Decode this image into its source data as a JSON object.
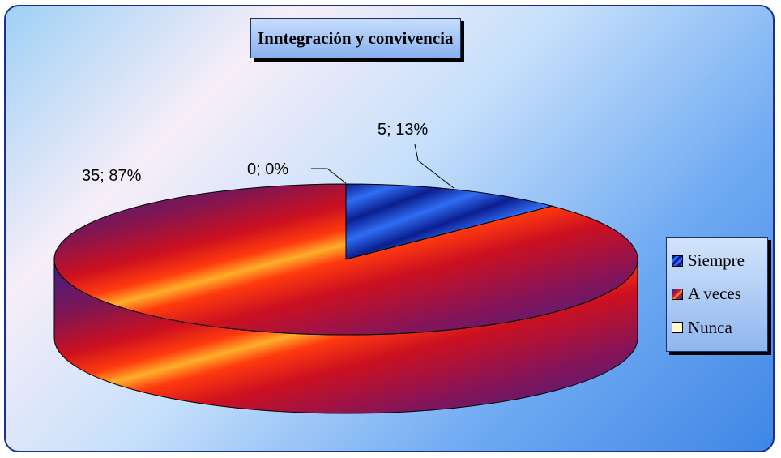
{
  "chart_data": {
    "type": "pie",
    "title": "Inntegración y convivencia",
    "categories": [
      "Siempre",
      "A veces",
      "Nunca"
    ],
    "values": [
      5,
      35,
      0
    ],
    "data_labels": [
      "5; 13%",
      "35; 87%",
      "0; 0%"
    ],
    "legend": {
      "placement": "right",
      "items": [
        {
          "label": "Siempre",
          "color": "#1b3fbf"
        },
        {
          "label": "A veces",
          "color": "#d01e2e"
        },
        {
          "label": "Nunca",
          "color": "#fff9cc"
        }
      ]
    },
    "style": "3d"
  }
}
